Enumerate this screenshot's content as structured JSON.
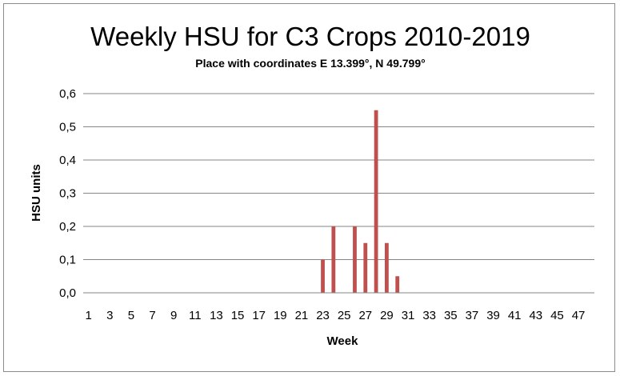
{
  "chart_data": {
    "type": "bar",
    "title": "Weekly HSU for C3 Crops 2010-2019",
    "subtitle": "Place with coordinates E 13.399°, N 49.799°",
    "xlabel": "Week",
    "ylabel": "HSU units",
    "ylim": [
      0,
      0.6
    ],
    "y_ticks": [
      "0,0",
      "0,1",
      "0,2",
      "0,3",
      "0,4",
      "0,5",
      "0,6"
    ],
    "x_tick_labels": [
      "1",
      "3",
      "5",
      "7",
      "9",
      "11",
      "13",
      "15",
      "17",
      "19",
      "21",
      "23",
      "25",
      "27",
      "29",
      "31",
      "33",
      "35",
      "37",
      "39",
      "41",
      "43",
      "45",
      "47"
    ],
    "grid": true,
    "legend": "none",
    "bar_color": "#c0504d",
    "categories": [
      1,
      2,
      3,
      4,
      5,
      6,
      7,
      8,
      9,
      10,
      11,
      12,
      13,
      14,
      15,
      16,
      17,
      18,
      19,
      20,
      21,
      22,
      23,
      24,
      25,
      26,
      27,
      28,
      29,
      30,
      31,
      32,
      33,
      34,
      35,
      36,
      37,
      38,
      39,
      40,
      41,
      42,
      43,
      44,
      45,
      46,
      47,
      48
    ],
    "values": [
      0,
      0,
      0,
      0,
      0,
      0,
      0,
      0,
      0,
      0,
      0,
      0,
      0,
      0,
      0,
      0,
      0,
      0,
      0,
      0,
      0,
      0,
      0.1,
      0.2,
      0,
      0.2,
      0.15,
      0.55,
      0.15,
      0.05,
      0,
      0,
      0,
      0,
      0,
      0,
      0,
      0,
      0,
      0,
      0,
      0,
      0,
      0,
      0,
      0,
      0,
      0
    ]
  }
}
